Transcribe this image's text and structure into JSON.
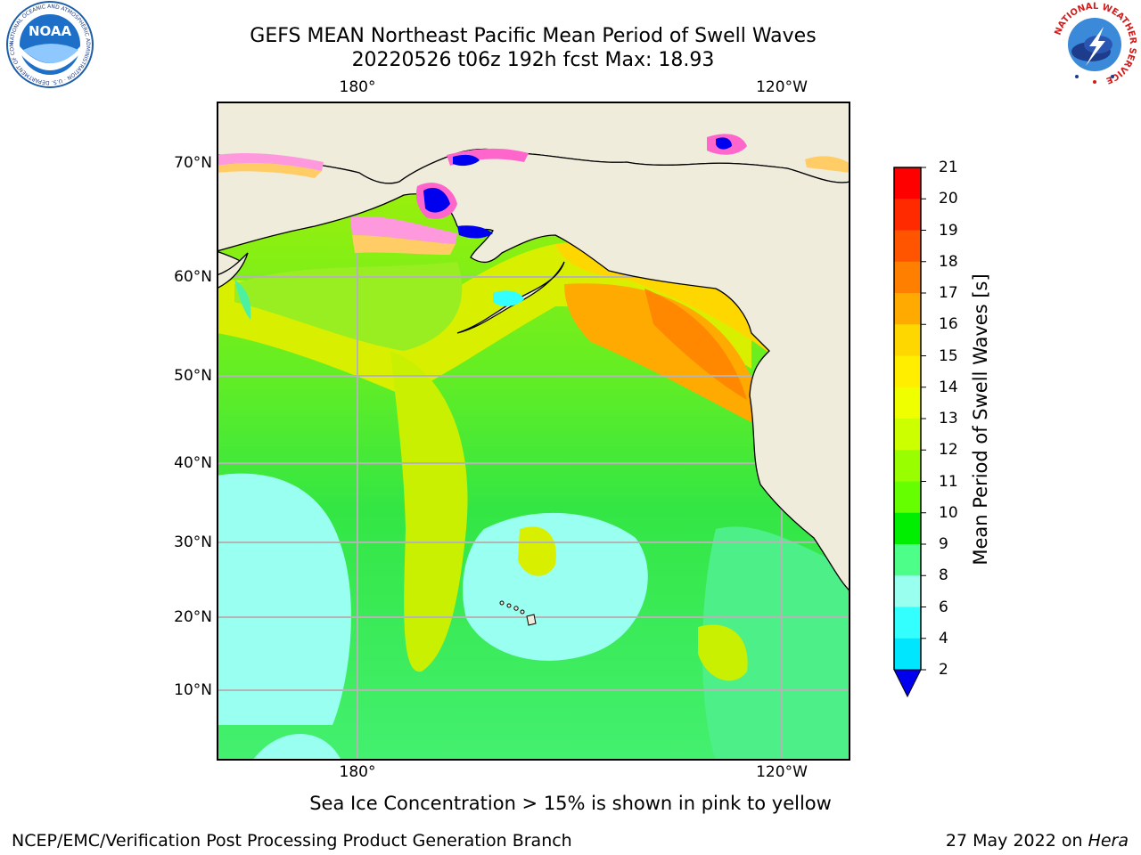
{
  "title": {
    "line1": "GEFS MEAN Northeast Pacific Mean Period of Swell Waves",
    "line2": "20220526 t06z 192h fcst   Max: 18.93"
  },
  "map": {
    "lon_labels_top": [
      "180°",
      "120°W"
    ],
    "lon_labels_bottom": [
      "180°",
      "120°W"
    ],
    "lat_labels": [
      "70°N",
      "60°N",
      "50°N",
      "40°N",
      "30°N",
      "20°N",
      "10°N"
    ],
    "land_color": "#efecdc",
    "grid_color": "#b4b4b4",
    "sea_ice_colors": [
      "#ff66cc",
      "#ff99dd",
      "#ffcc66",
      "#ffff66"
    ]
  },
  "colorbar": {
    "label": "Mean Period of Swell Waves [s]",
    "ticks": [
      "21",
      "20",
      "19",
      "18",
      "17",
      "16",
      "15",
      "14",
      "13",
      "12",
      "11",
      "10",
      "9",
      "8",
      "6",
      "4",
      "2"
    ],
    "colors": [
      "#ff0000",
      "#ff2a00",
      "#ff5500",
      "#ff7f00",
      "#ffaa00",
      "#ffd700",
      "#ffee00",
      "#f0ff00",
      "#ccff00",
      "#99ff00",
      "#66ff00",
      "#00ee00",
      "#4dff88",
      "#99ffee",
      "#33ffff",
      "#00e6ff",
      "#0099ff",
      "#0066ff"
    ],
    "extend_color": "#0000ee"
  },
  "note": "Sea Ice Concentration > 15% is shown in pink to yellow",
  "footer": {
    "left": "NCEP/EMC/Verification Post Processing Product Generation Branch",
    "right_date": "27 May 2022 on ",
    "right_machine": "Hera"
  },
  "logos": {
    "noaa_text": "NOAA",
    "nws_text": "NATIONAL WEATHER SERVICE",
    "noaa_ring_text": "NATIONAL OCEANIC AND ATMOSPHERIC ADMINISTRATION · U.S. DEPARTMENT OF COMMERCE"
  }
}
